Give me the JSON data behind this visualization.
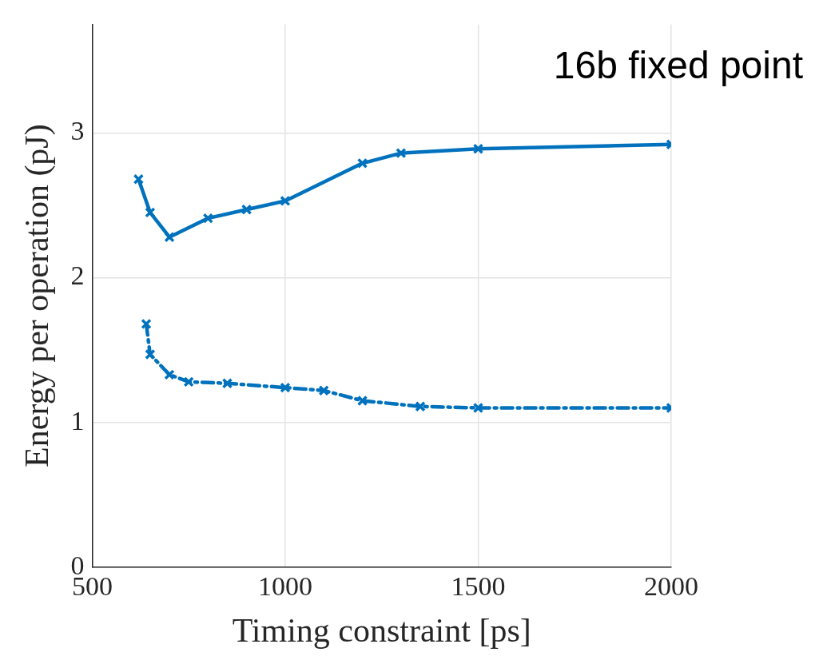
{
  "chart_data": {
    "type": "line",
    "title": "16b fixed point",
    "xlabel": "Timing constraint [ps]",
    "ylabel": "Energy per operation (pJ)",
    "xlim": [
      500,
      2000
    ],
    "ylim": [
      0,
      3.75
    ],
    "xticks": [
      500,
      1000,
      1500,
      2000
    ],
    "yticks": [
      0,
      1,
      2,
      3
    ],
    "grid": true,
    "legend": false,
    "marker": "cross",
    "series": [
      {
        "color": "#0072bd",
        "line_style": "solid",
        "x": [
          620,
          650,
          700,
          800,
          900,
          1000,
          1200,
          1300,
          1500,
          2000
        ],
        "values": [
          2.68,
          2.45,
          2.28,
          2.41,
          2.47,
          2.53,
          2.79,
          2.86,
          2.89,
          2.92
        ]
      },
      {
        "color": "#0072bd",
        "line_style": "dashed",
        "x": [
          640,
          650,
          700,
          750,
          850,
          1000,
          1100,
          1200,
          1350,
          1500,
          2000
        ],
        "values": [
          1.68,
          1.47,
          1.33,
          1.28,
          1.27,
          1.24,
          1.22,
          1.15,
          1.11,
          1.1,
          1.1
        ]
      }
    ]
  }
}
